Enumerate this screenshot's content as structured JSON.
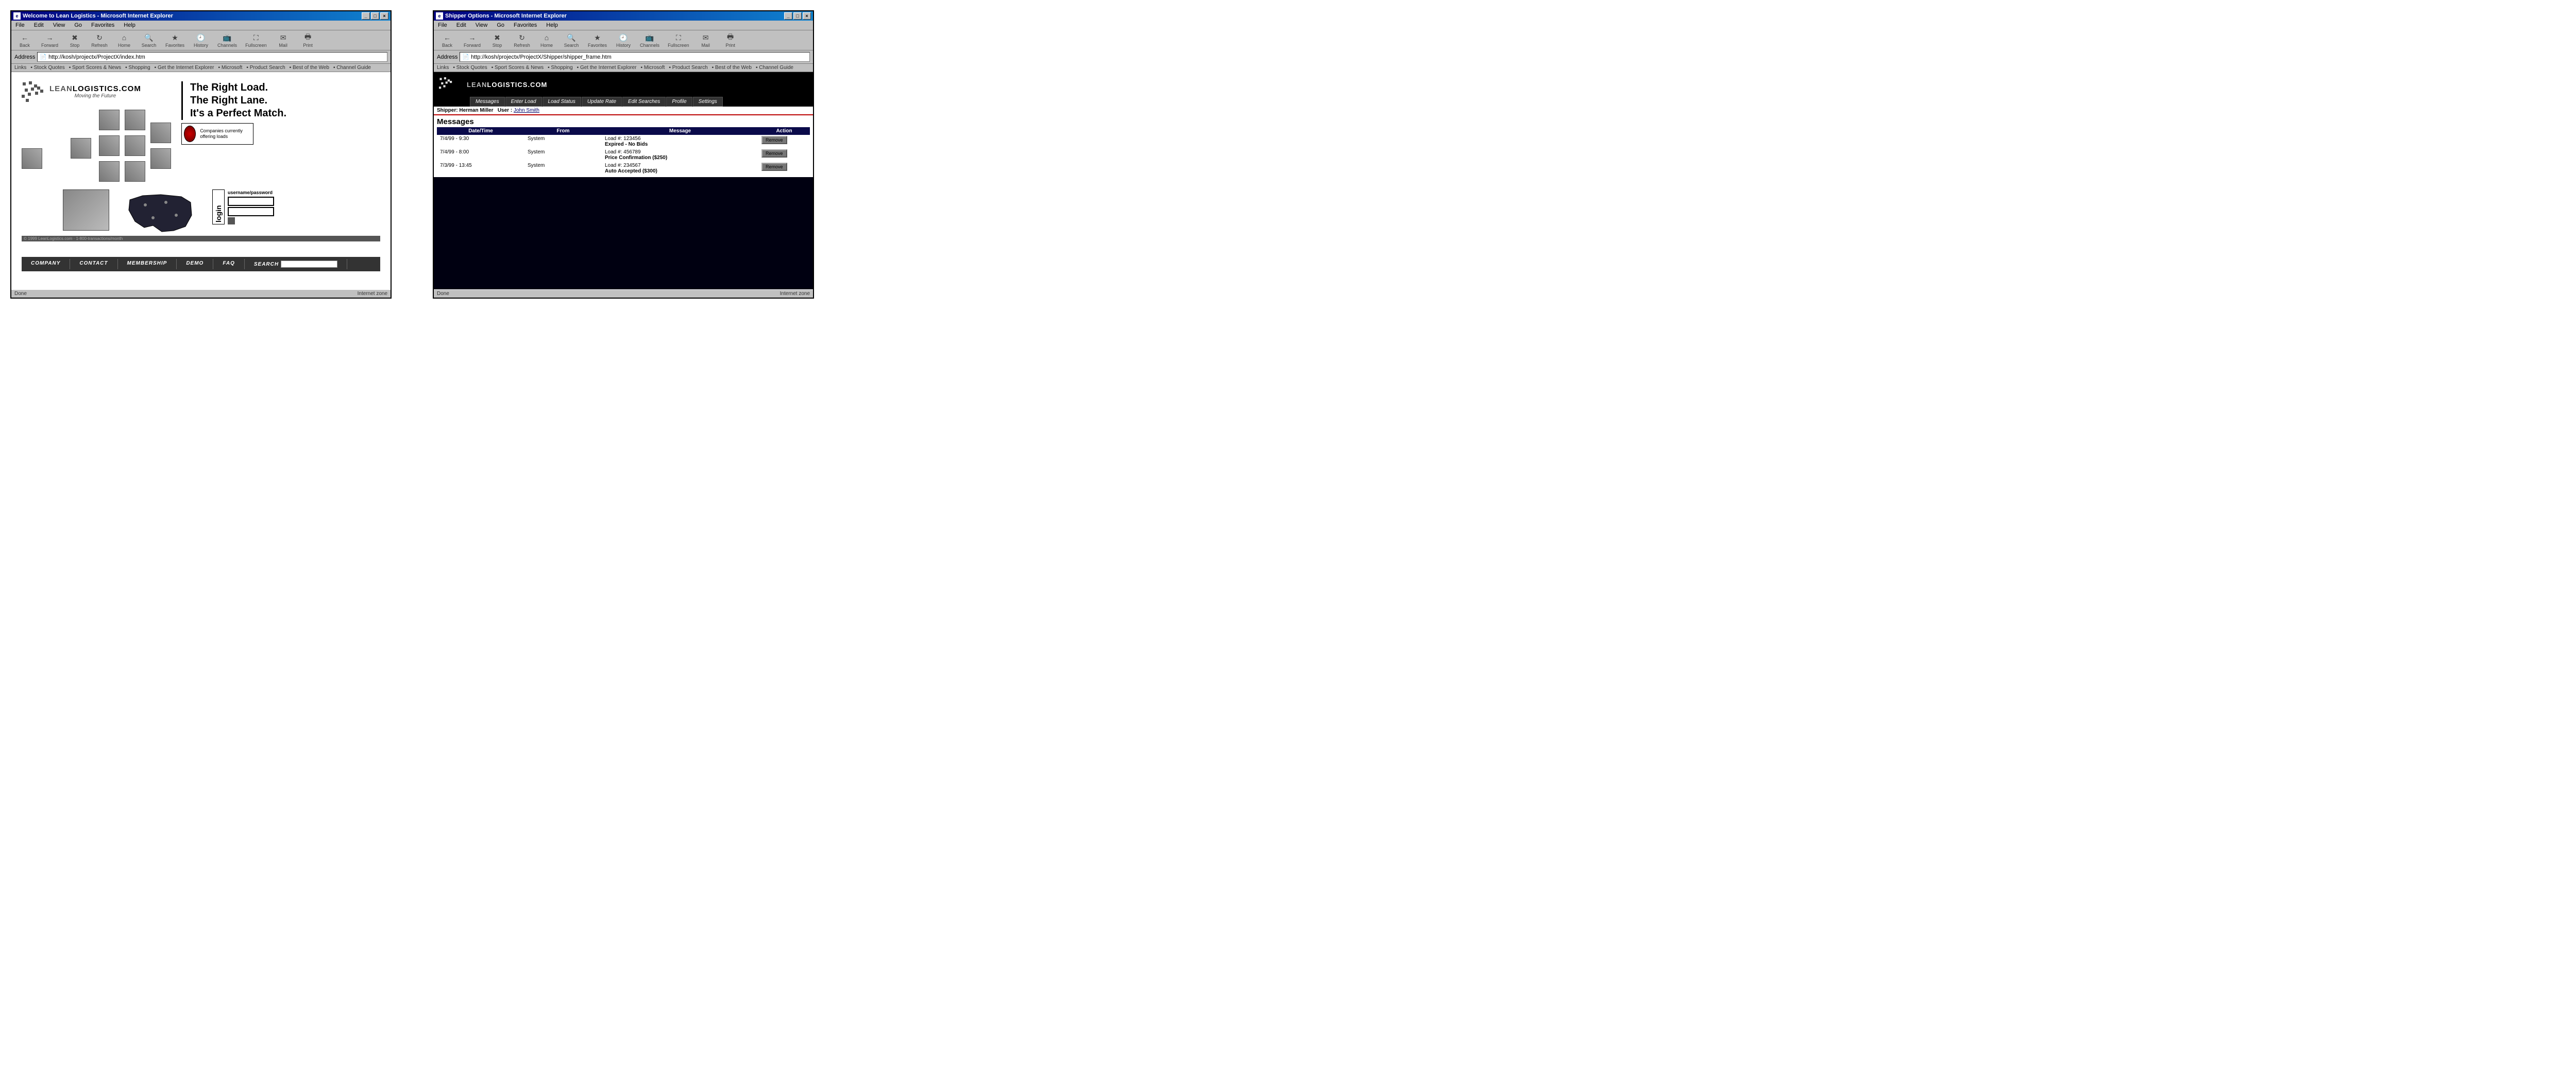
{
  "window1": {
    "title": "Welcome to Lean Logistics - Microsoft Internet Explorer",
    "menus": [
      "File",
      "Edit",
      "View",
      "Go",
      "Favorites",
      "Help"
    ],
    "toolbar": [
      {
        "label": "Back",
        "glyph": "←"
      },
      {
        "label": "Forward",
        "glyph": "→"
      },
      {
        "label": "Stop",
        "glyph": "✖"
      },
      {
        "label": "Refresh",
        "glyph": "↻"
      },
      {
        "label": "Home",
        "glyph": "⌂"
      },
      {
        "label": "Search",
        "glyph": "🔍"
      },
      {
        "label": "Favorites",
        "glyph": "★"
      },
      {
        "label": "History",
        "glyph": "🕘"
      },
      {
        "label": "Channels",
        "glyph": "📺"
      },
      {
        "label": "Fullscreen",
        "glyph": "⛶"
      },
      {
        "label": "Mail",
        "glyph": "✉"
      },
      {
        "label": "Print",
        "glyph": "🖶"
      }
    ],
    "address_label": "Address",
    "address": "http://kosh/projectx/ProjectX/index.htm",
    "links_label": "Links",
    "links": [
      "Stock Quotes",
      "Sport Scores & News",
      "Shopping",
      "Get the Internet Explorer",
      "Microsoft",
      "Product Search",
      "Best of the Web",
      "Channel Guide"
    ],
    "logo": {
      "brand": "LEAN",
      "brand2": "LOGISTICS.COM",
      "tagline": "Moving the Future"
    },
    "headlines": [
      "The Right Load.",
      "The Right Lane.",
      "It's a Perfect Match."
    ],
    "promo": "Companies currently offering loads",
    "login": {
      "label": "username/password",
      "vertical": "login"
    },
    "footer": [
      "COMPANY",
      "CONTACT",
      "MEMBERSHIP",
      "DEMO",
      "FAQ",
      "SEARCH"
    ],
    "footer_caption": "© 1999 LeanLogistics.com · 1-800-transactions/month",
    "status_left": "Done",
    "status_right": "Internet zone"
  },
  "window2": {
    "title": "Shipper Options - Microsoft Internet Explorer",
    "menus": [
      "File",
      "Edit",
      "View",
      "Go",
      "Favorites",
      "Help"
    ],
    "toolbar": [
      {
        "label": "Back",
        "glyph": "←"
      },
      {
        "label": "Forward",
        "glyph": "→"
      },
      {
        "label": "Stop",
        "glyph": "✖"
      },
      {
        "label": "Refresh",
        "glyph": "↻"
      },
      {
        "label": "Home",
        "glyph": "⌂"
      },
      {
        "label": "Search",
        "glyph": "🔍"
      },
      {
        "label": "Favorites",
        "glyph": "★"
      },
      {
        "label": "History",
        "glyph": "🕘"
      },
      {
        "label": "Channels",
        "glyph": "📺"
      },
      {
        "label": "Fullscreen",
        "glyph": "⛶"
      },
      {
        "label": "Mail",
        "glyph": "✉"
      },
      {
        "label": "Print",
        "glyph": "🖶"
      }
    ],
    "address_label": "Address",
    "address": "http://kosh/projectx/ProjectX/Shipper/shipper_frame.htm",
    "links_label": "Links",
    "links": [
      "Stock Quotes",
      "Sport Scores & News",
      "Shopping",
      "Get the Internet Explorer",
      "Microsoft",
      "Product Search",
      "Best of the Web",
      "Channel Guide"
    ],
    "logo": {
      "brand": "LEAN",
      "brand2": "LOGISTICS.COM"
    },
    "tabs": [
      "Messages",
      "Enter Load",
      "Load Status",
      "Update Rate",
      "Edit Searches",
      "Profile",
      "Settings"
    ],
    "userline": {
      "shipper_label": "Shipper:",
      "shipper": "Herman Miller",
      "user_label": "User :",
      "user": "John Smith"
    },
    "section_title": "Messages",
    "columns": [
      "Date/Time",
      "From",
      "Message",
      "Action"
    ],
    "rows": [
      {
        "dt": "7/4/99 - 9:30",
        "from": "System",
        "l1": "Load #: 123456",
        "l2": "Expired - No Bids",
        "action": "Remove"
      },
      {
        "dt": "7/4/99 - 8:00",
        "from": "System",
        "l1": "Load #: 456789",
        "l2": "Price Confirmation ($250)",
        "action": "Remove"
      },
      {
        "dt": "7/3/99 - 13:45",
        "from": "System",
        "l1": "Load #: 234567",
        "l2": "Auto Accepted ($300)",
        "action": "Remove"
      }
    ],
    "status_left": "Done",
    "status_right": "Internet zone"
  }
}
